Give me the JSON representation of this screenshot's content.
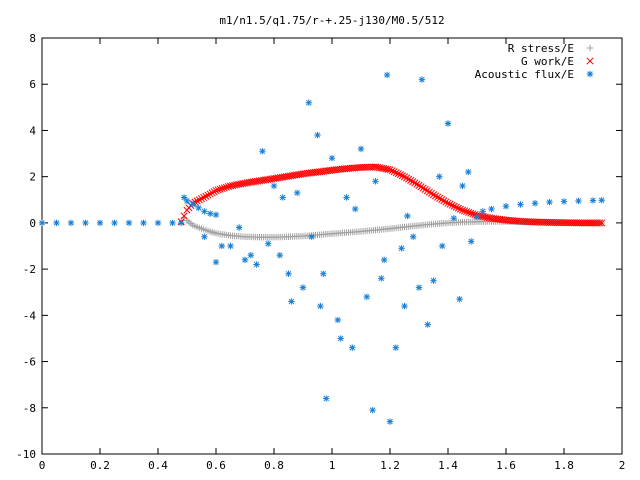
{
  "chart_data": {
    "type": "scatter",
    "title": "m1/n1.5/q1.75/r-+.25-j130/M0.5/512",
    "xlabel": "",
    "ylabel": "",
    "xlim": [
      0,
      2
    ],
    "ylim": [
      -10,
      8
    ],
    "xticks": [
      "0",
      "0.2",
      "0.4",
      "0.6",
      "0.8",
      "1",
      "1.2",
      "1.4",
      "1.6",
      "1.8",
      "2"
    ],
    "yticks": [
      "8",
      "6",
      "4",
      "2",
      "0",
      "-2",
      "-4",
      "-6",
      "-8",
      "-10"
    ],
    "grid": false,
    "legend_position": "top-right",
    "series": [
      {
        "name": "R stress/E",
        "marker": "plus",
        "color": "#a0a0a0",
        "points": [
          [
            0.49,
            0.22
          ],
          [
            0.5,
            0.1
          ],
          [
            0.52,
            -0.1
          ],
          [
            0.55,
            -0.25
          ],
          [
            0.58,
            -0.38
          ],
          [
            0.6,
            -0.45
          ],
          [
            0.65,
            -0.55
          ],
          [
            0.7,
            -0.6
          ],
          [
            0.75,
            -0.62
          ],
          [
            0.8,
            -0.62
          ],
          [
            0.85,
            -0.6
          ],
          [
            0.9,
            -0.57
          ],
          [
            0.95,
            -0.52
          ],
          [
            1.0,
            -0.47
          ],
          [
            1.05,
            -0.42
          ],
          [
            1.1,
            -0.37
          ],
          [
            1.15,
            -0.31
          ],
          [
            1.2,
            -0.25
          ],
          [
            1.25,
            -0.18
          ],
          [
            1.3,
            -0.11
          ],
          [
            1.35,
            -0.05
          ],
          [
            1.4,
            0.0
          ],
          [
            1.45,
            0.03
          ],
          [
            1.5,
            0.05
          ],
          [
            1.55,
            0.06
          ],
          [
            1.6,
            0.05
          ],
          [
            1.65,
            0.04
          ],
          [
            1.7,
            0.03
          ],
          [
            1.75,
            0.02
          ],
          [
            1.8,
            0.01
          ],
          [
            1.85,
            0.01
          ],
          [
            1.9,
            0.0
          ],
          [
            1.93,
            0.0
          ]
        ]
      },
      {
        "name": "G work/E",
        "marker": "cross",
        "color": "#ff0000",
        "points": [
          [
            0.48,
            0.05
          ],
          [
            0.49,
            0.3
          ],
          [
            0.5,
            0.55
          ],
          [
            0.52,
            0.85
          ],
          [
            0.55,
            1.05
          ],
          [
            0.58,
            1.25
          ],
          [
            0.6,
            1.4
          ],
          [
            0.65,
            1.6
          ],
          [
            0.7,
            1.72
          ],
          [
            0.75,
            1.82
          ],
          [
            0.8,
            1.92
          ],
          [
            0.85,
            2.02
          ],
          [
            0.9,
            2.12
          ],
          [
            0.95,
            2.2
          ],
          [
            1.0,
            2.28
          ],
          [
            1.05,
            2.35
          ],
          [
            1.1,
            2.4
          ],
          [
            1.15,
            2.42
          ],
          [
            1.2,
            2.3
          ],
          [
            1.25,
            2.0
          ],
          [
            1.3,
            1.62
          ],
          [
            1.35,
            1.22
          ],
          [
            1.4,
            0.85
          ],
          [
            1.45,
            0.55
          ],
          [
            1.5,
            0.33
          ],
          [
            1.55,
            0.2
          ],
          [
            1.6,
            0.12
          ],
          [
            1.65,
            0.07
          ],
          [
            1.7,
            0.04
          ],
          [
            1.75,
            0.02
          ],
          [
            1.8,
            0.01
          ],
          [
            1.85,
            0.0
          ],
          [
            1.9,
            0.0
          ],
          [
            1.93,
            0.0
          ]
        ]
      },
      {
        "name": "Acoustic flux/E",
        "marker": "star",
        "color": "#1a7fd4",
        "points": [
          [
            0.0,
            0.0
          ],
          [
            0.05,
            0.0
          ],
          [
            0.1,
            0.0
          ],
          [
            0.15,
            0.0
          ],
          [
            0.2,
            0.0
          ],
          [
            0.25,
            0.0
          ],
          [
            0.3,
            0.0
          ],
          [
            0.35,
            0.0
          ],
          [
            0.4,
            0.0
          ],
          [
            0.45,
            0.0
          ],
          [
            0.48,
            0.0
          ],
          [
            0.49,
            1.1
          ],
          [
            0.5,
            0.95
          ],
          [
            0.52,
            0.8
          ],
          [
            0.54,
            0.65
          ],
          [
            0.56,
            0.5
          ],
          [
            0.58,
            0.4
          ],
          [
            0.6,
            0.35
          ],
          [
            0.56,
            -0.6
          ],
          [
            0.6,
            -1.7
          ],
          [
            0.62,
            -1.0
          ],
          [
            0.65,
            -1.0
          ],
          [
            0.68,
            -0.2
          ],
          [
            0.7,
            -1.6
          ],
          [
            0.72,
            -1.4
          ],
          [
            0.74,
            -1.8
          ],
          [
            0.76,
            3.1
          ],
          [
            0.78,
            -0.9
          ],
          [
            0.8,
            1.6
          ],
          [
            0.82,
            -1.4
          ],
          [
            0.83,
            1.1
          ],
          [
            0.85,
            -2.2
          ],
          [
            0.86,
            -3.4
          ],
          [
            0.88,
            1.3
          ],
          [
            0.9,
            -2.8
          ],
          [
            0.92,
            5.2
          ],
          [
            0.93,
            -0.6
          ],
          [
            0.95,
            3.8
          ],
          [
            0.96,
            -3.6
          ],
          [
            0.97,
            -2.2
          ],
          [
            0.98,
            -7.6
          ],
          [
            1.0,
            2.8
          ],
          [
            1.02,
            -4.2
          ],
          [
            1.03,
            -5.0
          ],
          [
            1.05,
            1.1
          ],
          [
            1.07,
            -5.4
          ],
          [
            1.08,
            0.6
          ],
          [
            1.1,
            3.2
          ],
          [
            1.12,
            -3.2
          ],
          [
            1.14,
            -8.1
          ],
          [
            1.15,
            1.8
          ],
          [
            1.17,
            -2.4
          ],
          [
            1.18,
            -1.6
          ],
          [
            1.19,
            6.4
          ],
          [
            1.2,
            -8.6
          ],
          [
            1.22,
            -5.4
          ],
          [
            1.24,
            -1.1
          ],
          [
            1.25,
            -3.6
          ],
          [
            1.26,
            0.3
          ],
          [
            1.28,
            -0.6
          ],
          [
            1.3,
            -2.8
          ],
          [
            1.31,
            6.2
          ],
          [
            1.33,
            -4.4
          ],
          [
            1.35,
            -2.5
          ],
          [
            1.37,
            2.0
          ],
          [
            1.38,
            -1.0
          ],
          [
            1.4,
            4.3
          ],
          [
            1.42,
            0.2
          ],
          [
            1.44,
            -3.3
          ],
          [
            1.45,
            1.6
          ],
          [
            1.47,
            2.2
          ],
          [
            1.48,
            -0.8
          ],
          [
            1.5,
            0.25
          ],
          [
            1.52,
            0.5
          ],
          [
            1.55,
            0.6
          ],
          [
            1.6,
            0.72
          ],
          [
            1.65,
            0.8
          ],
          [
            1.7,
            0.85
          ],
          [
            1.75,
            0.9
          ],
          [
            1.8,
            0.93
          ],
          [
            1.85,
            0.95
          ],
          [
            1.9,
            0.97
          ],
          [
            1.93,
            0.98
          ]
        ]
      }
    ]
  }
}
